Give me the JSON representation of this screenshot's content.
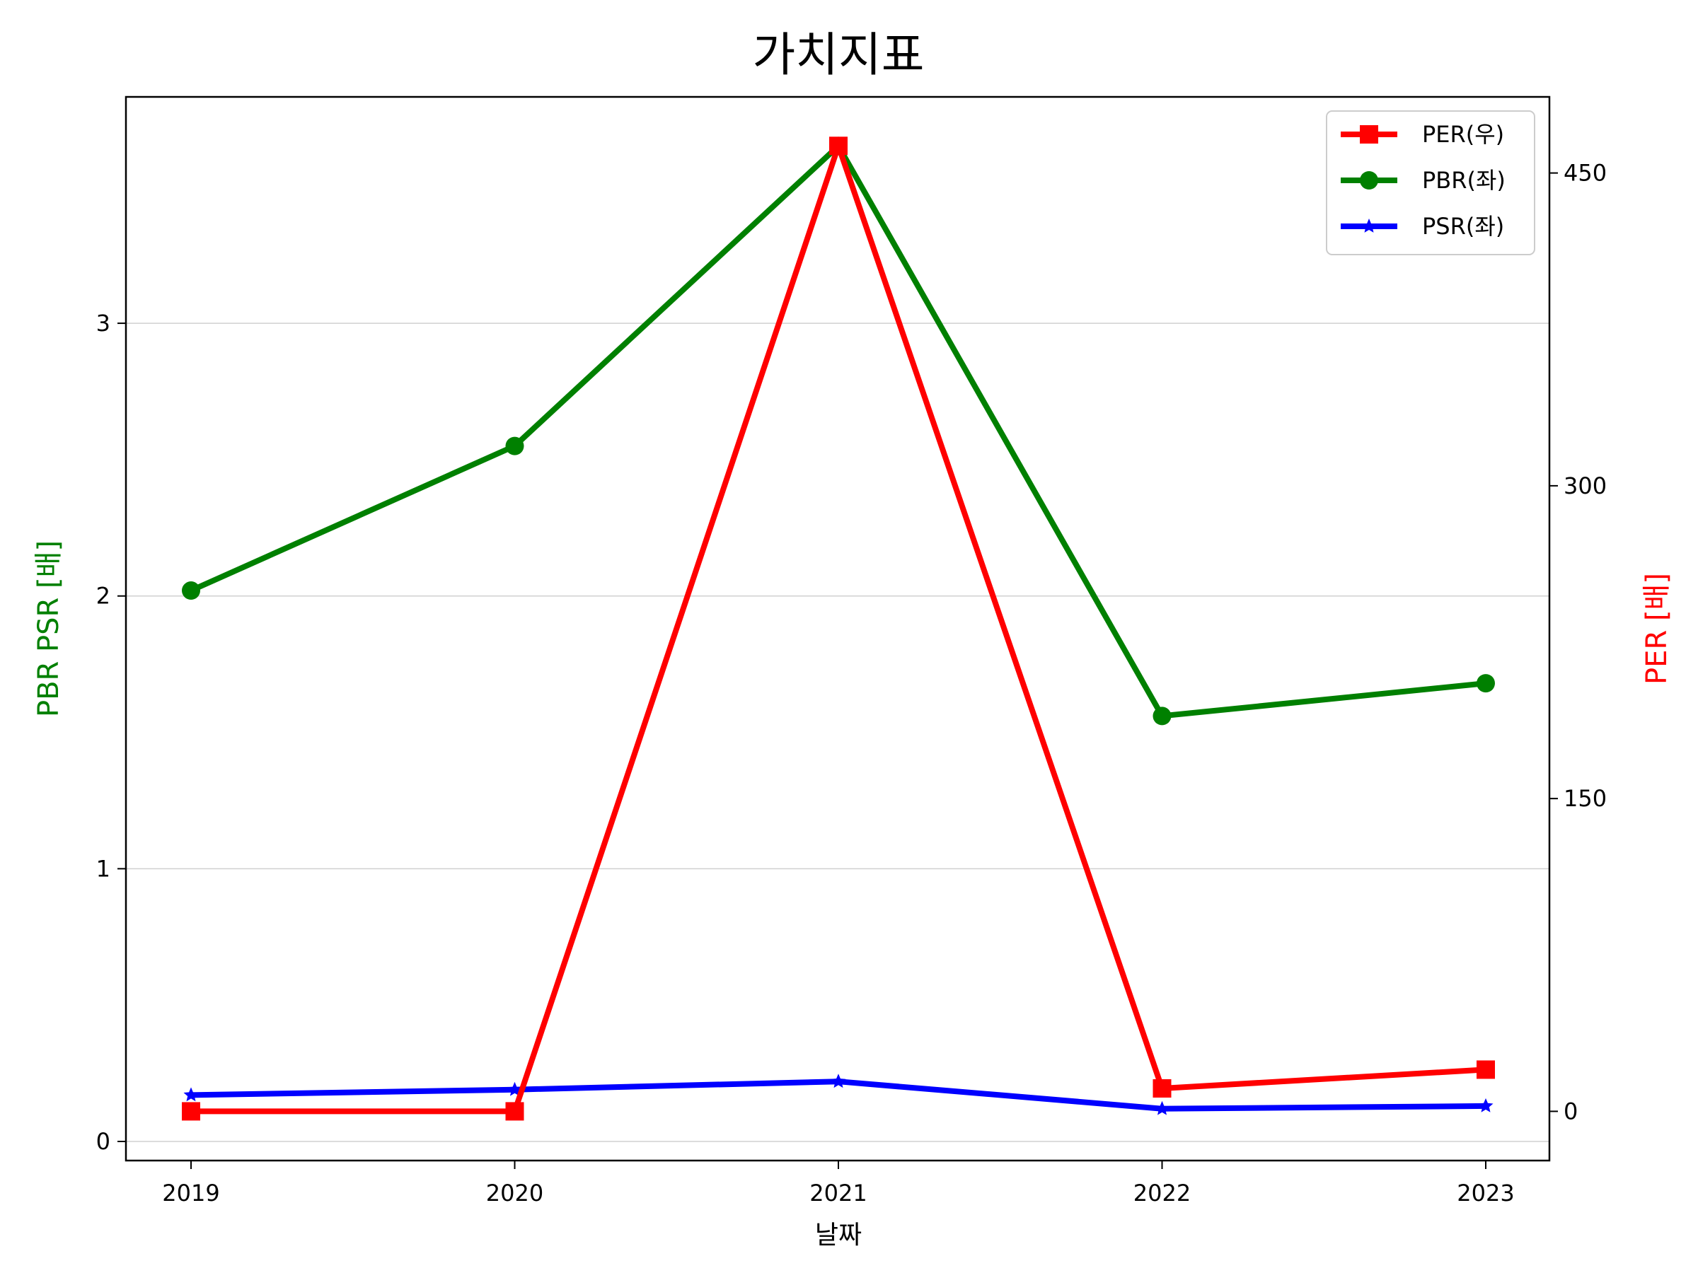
{
  "chart_data": {
    "type": "line",
    "title": "가치지표",
    "xlabel": "날짜",
    "ylabel_left": "PBR PSR [배]",
    "ylabel_right": "PER [배]",
    "x": [
      "2019",
      "2020",
      "2021",
      "2022",
      "2023"
    ],
    "series": [
      {
        "name": "PER(우)",
        "axis": "right",
        "color": "#ff0000",
        "marker": "square",
        "values": [
          0,
          0,
          463,
          11,
          20
        ]
      },
      {
        "name": "PBR(좌)",
        "axis": "left",
        "color": "#008000",
        "marker": "circle",
        "values": [
          2.02,
          2.55,
          3.65,
          1.56,
          1.68
        ]
      },
      {
        "name": "PSR(좌)",
        "axis": "left",
        "color": "#0000ff",
        "marker": "star",
        "values": [
          0.17,
          0.19,
          0.22,
          0.12,
          0.13
        ]
      }
    ],
    "ylim_left": [
      -0.07,
      3.83
    ],
    "yticks_left": [
      "0",
      "1",
      "2",
      "3"
    ],
    "ylim_right": [
      -23.6,
      486.5
    ],
    "yticks_right": [
      "0",
      "150",
      "300",
      "450"
    ],
    "grid": "horizontal",
    "legend_position": "top-right",
    "label_colors": {
      "left": "#008000",
      "right": "#ff0000"
    }
  }
}
